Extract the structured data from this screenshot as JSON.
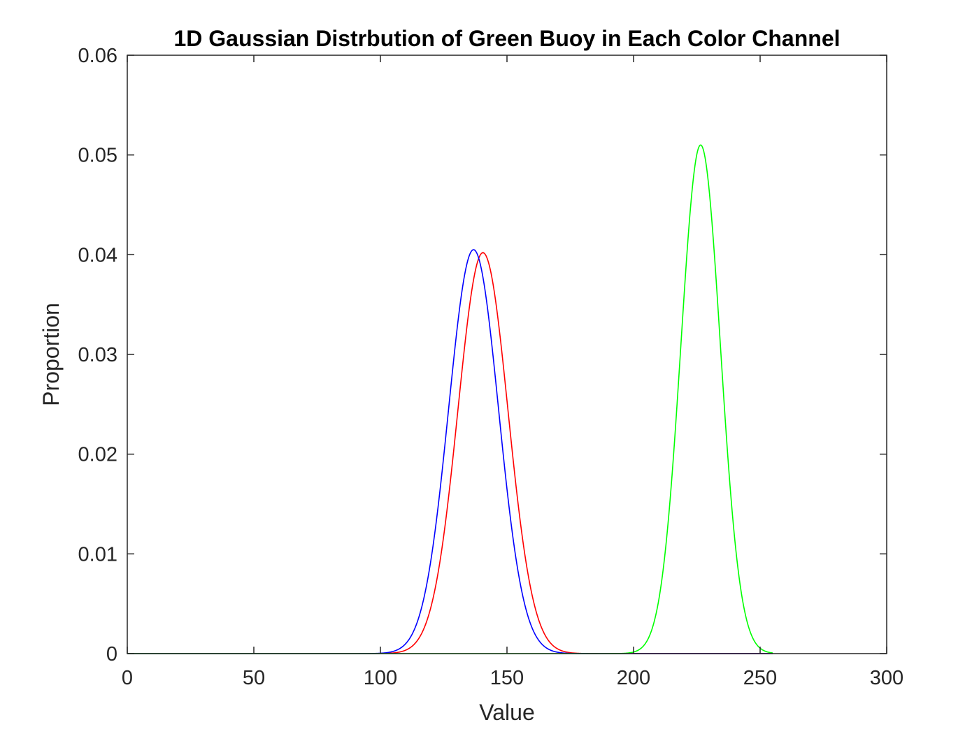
{
  "chart_data": {
    "type": "line",
    "title": "1D Gaussian Distrbution of Green Buoy in Each Color Channel",
    "xlabel": "Value",
    "ylabel": "Proportion",
    "xlim": [
      0,
      300
    ],
    "ylim": [
      0,
      0.06
    ],
    "xticks": [
      0,
      50,
      100,
      150,
      200,
      250,
      300
    ],
    "yticks": [
      0,
      0.01,
      0.02,
      0.03,
      0.04,
      0.05,
      0.06
    ],
    "xtick_labels": [
      "0",
      "50",
      "100",
      "150",
      "200",
      "250",
      "300"
    ],
    "ytick_labels": [
      "0",
      "0.01",
      "0.02",
      "0.03",
      "0.04",
      "0.05",
      "0.06"
    ],
    "grid": false,
    "legend": "none",
    "x_range": [
      0,
      255
    ],
    "series": [
      {
        "color": "#ff0000",
        "mean": 140.5,
        "sigma": 9.9,
        "peak": 0.0402
      },
      {
        "color": "#0000ff",
        "mean": 136.8,
        "sigma": 9.85,
        "peak": 0.0405
      },
      {
        "color": "#00ff00",
        "mean": 226.5,
        "sigma": 7.8,
        "peak": 0.051
      }
    ]
  }
}
